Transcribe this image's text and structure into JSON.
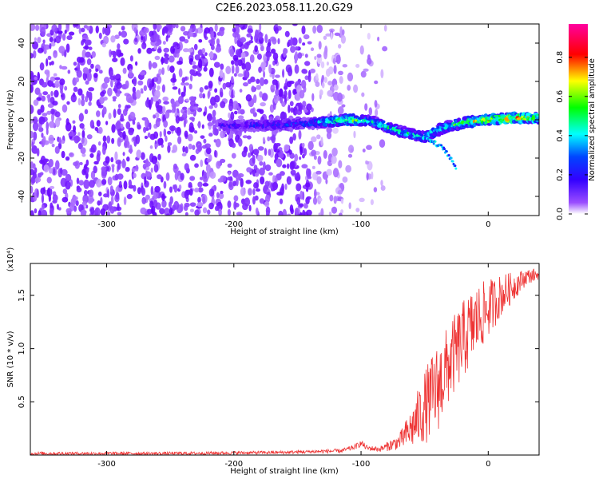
{
  "title": "C2E6.2023.058.11.20.G29",
  "chart_data": [
    {
      "type": "heatmap",
      "xlabel": "Height of straight line (km)",
      "ylabel": "Frequency (Hz)",
      "xlim": [
        -360,
        40
      ],
      "ylim": [
        -50,
        50
      ],
      "xticks": [
        -300,
        -200,
        -100,
        0
      ],
      "yticks": [
        -40,
        -20,
        0,
        20,
        40
      ],
      "colorbar": {
        "label": "Normalized spectral amplitude",
        "range": [
          0,
          1
        ],
        "ticks": [
          "0.0",
          "0.2",
          "0.4",
          "0.6",
          "0.8"
        ],
        "colors": [
          "#ffffff",
          "#6a00ff",
          "#0000ff",
          "#00ffff",
          "#00ff00",
          "#ffff00",
          "#ff0000",
          "#ff00ff"
        ]
      },
      "ridge": [
        {
          "x": -210,
          "y": -3,
          "amp": 0.25
        },
        {
          "x": -180,
          "y": -3,
          "amp": 0.3
        },
        {
          "x": -140,
          "y": -2,
          "amp": 0.35
        },
        {
          "x": -110,
          "y": 0,
          "amp": 0.7
        },
        {
          "x": -90,
          "y": -1,
          "amp": 0.5
        },
        {
          "x": -70,
          "y": -6,
          "amp": 0.55
        },
        {
          "x": -50,
          "y": -9,
          "amp": 0.5
        },
        {
          "x": -35,
          "y": -4,
          "amp": 0.5
        },
        {
          "x": -15,
          "y": -1,
          "amp": 0.75
        },
        {
          "x": 0,
          "y": 0,
          "amp": 0.8
        },
        {
          "x": 20,
          "y": 1,
          "amp": 0.85
        },
        {
          "x": 40,
          "y": 1,
          "amp": 0.75
        }
      ],
      "branch": [
        {
          "x": -50,
          "y": -9
        },
        {
          "x": -35,
          "y": -15
        },
        {
          "x": -25,
          "y": -25
        }
      ]
    },
    {
      "type": "line",
      "xlabel": "Height of straight line (km)",
      "ylabel": "SNR (10 * v/v)",
      "y_multiplier": "(x10⁴)",
      "xlim": [
        -360,
        40
      ],
      "ylim": [
        0,
        1.8
      ],
      "xticks": [
        -300,
        -200,
        -100,
        0
      ],
      "yticks": [
        "0.5",
        "1.0",
        "1.5"
      ],
      "color": "#ee3333",
      "envelope": {
        "x": [
          -360,
          -250,
          -160,
          -115,
          -105,
          -100,
          -95,
          -85,
          -70,
          -60,
          -50,
          -40,
          -30,
          -20,
          -10,
          0,
          10,
          20,
          30,
          40
        ],
        "upper": [
          0.03,
          0.03,
          0.04,
          0.06,
          0.1,
          0.14,
          0.09,
          0.08,
          0.2,
          0.45,
          0.8,
          1.05,
          1.25,
          1.45,
          1.6,
          1.65,
          1.7,
          1.72,
          1.75,
          1.75
        ],
        "lower": [
          0.0,
          0.0,
          0.01,
          0.02,
          0.05,
          0.08,
          0.04,
          0.03,
          0.05,
          0.06,
          0.1,
          0.2,
          0.5,
          0.7,
          0.9,
          1.1,
          1.3,
          1.45,
          1.6,
          1.65
        ]
      }
    }
  ]
}
